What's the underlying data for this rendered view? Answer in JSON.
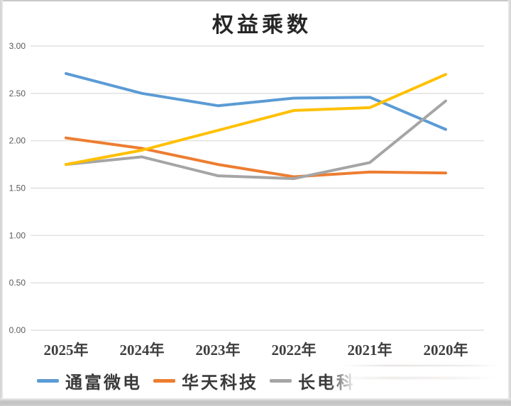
{
  "title": "权益乘数",
  "y_axis": {
    "tick_labels": [
      "3.00",
      "2.50",
      "2.00",
      "1.50",
      "1.00",
      "0.50",
      "0.00"
    ]
  },
  "x_axis": {
    "labels": [
      "2025年",
      "2024年",
      "2023年",
      "2022年",
      "2021年",
      "2020年"
    ]
  },
  "legend": {
    "items": [
      {
        "label": "通富微电",
        "color": "#5B9BD5"
      },
      {
        "label": "华天科技",
        "color": "#ED7D31"
      },
      {
        "label": "长电科",
        "color": "#A5A5A5"
      }
    ]
  },
  "chart_data": {
    "type": "line",
    "title": "权益乘数",
    "categories": [
      "2025年",
      "2024年",
      "2023年",
      "2022年",
      "2021年",
      "2020年"
    ],
    "series": [
      {
        "name": "通富微电",
        "color": "#5B9BD5",
        "values": [
          2.71,
          2.5,
          2.37,
          2.45,
          2.46,
          2.12
        ]
      },
      {
        "name": "华天科技",
        "color": "#ED7D31",
        "values": [
          2.03,
          1.92,
          1.75,
          1.62,
          1.67,
          1.66
        ]
      },
      {
        "name": "长电科",
        "color": "#A5A5A5",
        "values": [
          1.75,
          1.83,
          1.63,
          1.6,
          1.77,
          2.42
        ]
      },
      {
        "name": "",
        "color": "#FFC000",
        "values": [
          1.75,
          1.9,
          2.11,
          2.32,
          2.35,
          2.7
        ]
      }
    ],
    "ylim": [
      0,
      3.0
    ],
    "ytick_step": 0.5,
    "grid": true,
    "legend_position": "bottom",
    "note_fourth_series_legend": "legend entry for yellow series is hidden under a white smear"
  },
  "colors": {
    "grid": "#D9D9D9",
    "y_tick_text": "#595959",
    "x_label_text": "#3f3f3f",
    "title_text": "#262626"
  }
}
